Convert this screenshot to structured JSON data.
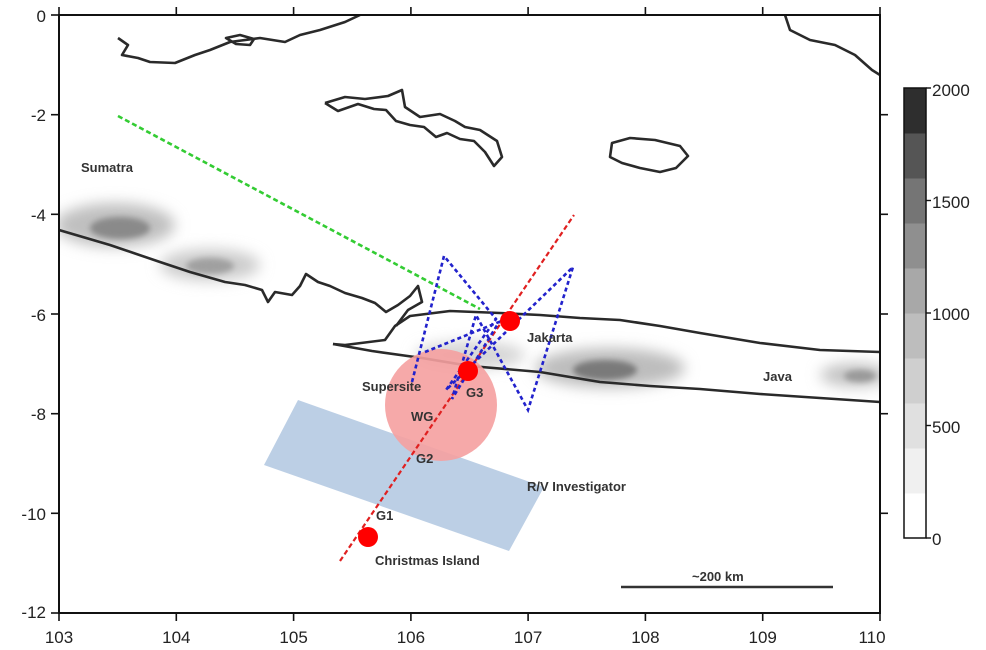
{
  "axes": {
    "x_ticks": [
      "103",
      "104",
      "105",
      "106",
      "107",
      "108",
      "109",
      "110"
    ],
    "y_ticks": [
      "0",
      "-2",
      "-4",
      "-6",
      "-8",
      "-10",
      "-12"
    ],
    "lon_range": [
      103,
      110
    ],
    "lat_range": [
      -12,
      0
    ]
  },
  "labels": {
    "sumatra": "Sumatra",
    "jakarta": "Jakarta",
    "java": "Java",
    "supersite": "Supersite",
    "g3": "G3",
    "wg": "WG",
    "g2": "G2",
    "g1": "G1",
    "rv_investigator": "R/V Investigator",
    "christmas_island": "Christmas Island"
  },
  "scale_bar": {
    "label": "~200 km"
  },
  "colorbar": {
    "ticks": [
      "2000",
      "1500",
      "1000",
      "500",
      "0"
    ],
    "range": [
      0,
      2000
    ],
    "colors": [
      "#ffffff",
      "#f0f0f0",
      "#e0e0e0",
      "#cfcfcf",
      "#bdbdbd",
      "#a8a8a8",
      "#8f8f8f",
      "#757575",
      "#555555",
      "#2e2e2e"
    ]
  },
  "colors": {
    "green_track": "#33cc33",
    "red_track": "#e02020",
    "blue_track": "#2222cc",
    "sites": "#ff0000",
    "circle_fill": "#f5a0a0",
    "rect_fill": "#b8cce4"
  },
  "sites": [
    {
      "name": "Jakarta",
      "lon": 106.85,
      "lat": -6.15
    },
    {
      "name": "Supersite",
      "lon": 106.5,
      "lat": -7.15
    },
    {
      "name": "Christmas Island",
      "lon": 105.65,
      "lat": -10.45
    }
  ]
}
